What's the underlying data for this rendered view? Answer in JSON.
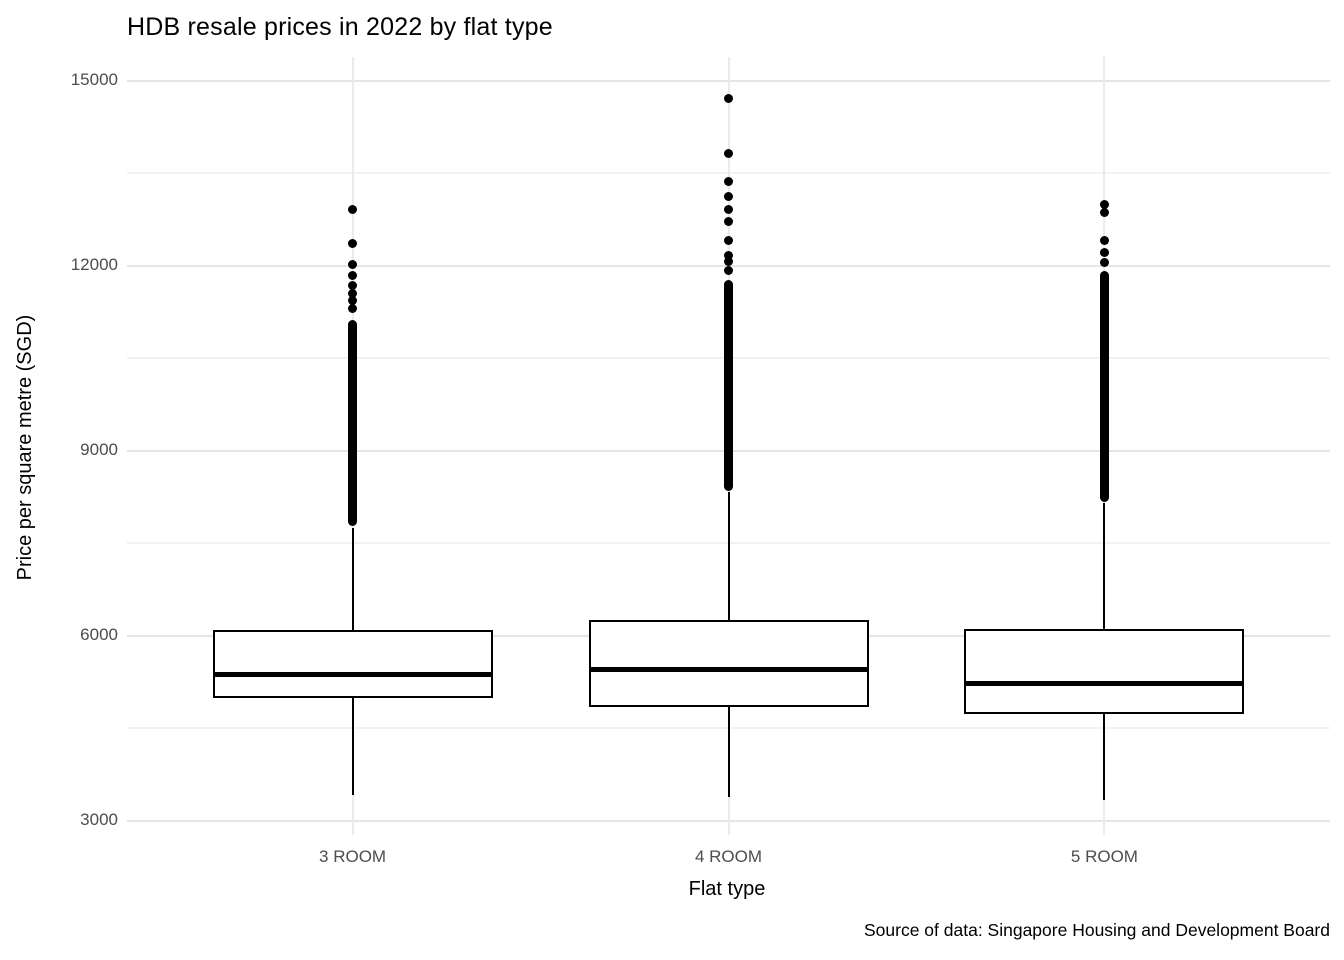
{
  "chart_data": {
    "type": "boxplot",
    "title": "HDB resale prices in 2022 by flat type",
    "xlabel": "Flat type",
    "ylabel": "Price per square metre (SGD)",
    "caption": "Source of data: Singapore Housing and Development Board",
    "categories": [
      "3 ROOM",
      "4 ROOM",
      "5 ROOM"
    ],
    "y_axis": {
      "ticks": [
        3000,
        6000,
        9000,
        12000,
        15000
      ],
      "minor_ticks": [
        4500,
        7500,
        10500,
        13500
      ],
      "range": [
        2750,
        15400
      ]
    },
    "grid": true,
    "legend": false,
    "boxes": [
      {
        "category": "3 ROOM",
        "whisker_low": 3400,
        "q1": 4970,
        "median": 5360,
        "q3": 6080,
        "whisker_high": 7740,
        "outlier_band": [
          7760,
          11100
        ],
        "outliers": [
          11290,
          11420,
          11530,
          11670,
          11830,
          12000,
          12350,
          12900
        ]
      },
      {
        "category": "4 ROOM",
        "whisker_low": 3380,
        "q1": 4830,
        "median": 5440,
        "q3": 6240,
        "whisker_high": 8320,
        "outlier_band": [
          8340,
          11750
        ],
        "outliers": [
          11900,
          12050,
          12150,
          12400,
          12700,
          12900,
          13100,
          13350,
          13800,
          14700
        ]
      },
      {
        "category": "5 ROOM",
        "whisker_low": 3330,
        "q1": 4710,
        "median": 5210,
        "q3": 6090,
        "whisker_high": 8140,
        "outlier_band": [
          8160,
          11900
        ],
        "outliers": [
          12040,
          12200,
          12400,
          12840,
          12970
        ]
      }
    ],
    "colors": {
      "box_stroke": "#000000",
      "median": "#000000",
      "grid_major": "#E5E5E5",
      "grid_minor": "#F2F2F2",
      "category_gridline": "#EBEBEB",
      "tick_label": "#4D4D4D",
      "text": "#000000",
      "background": "#FFFFFF"
    }
  }
}
